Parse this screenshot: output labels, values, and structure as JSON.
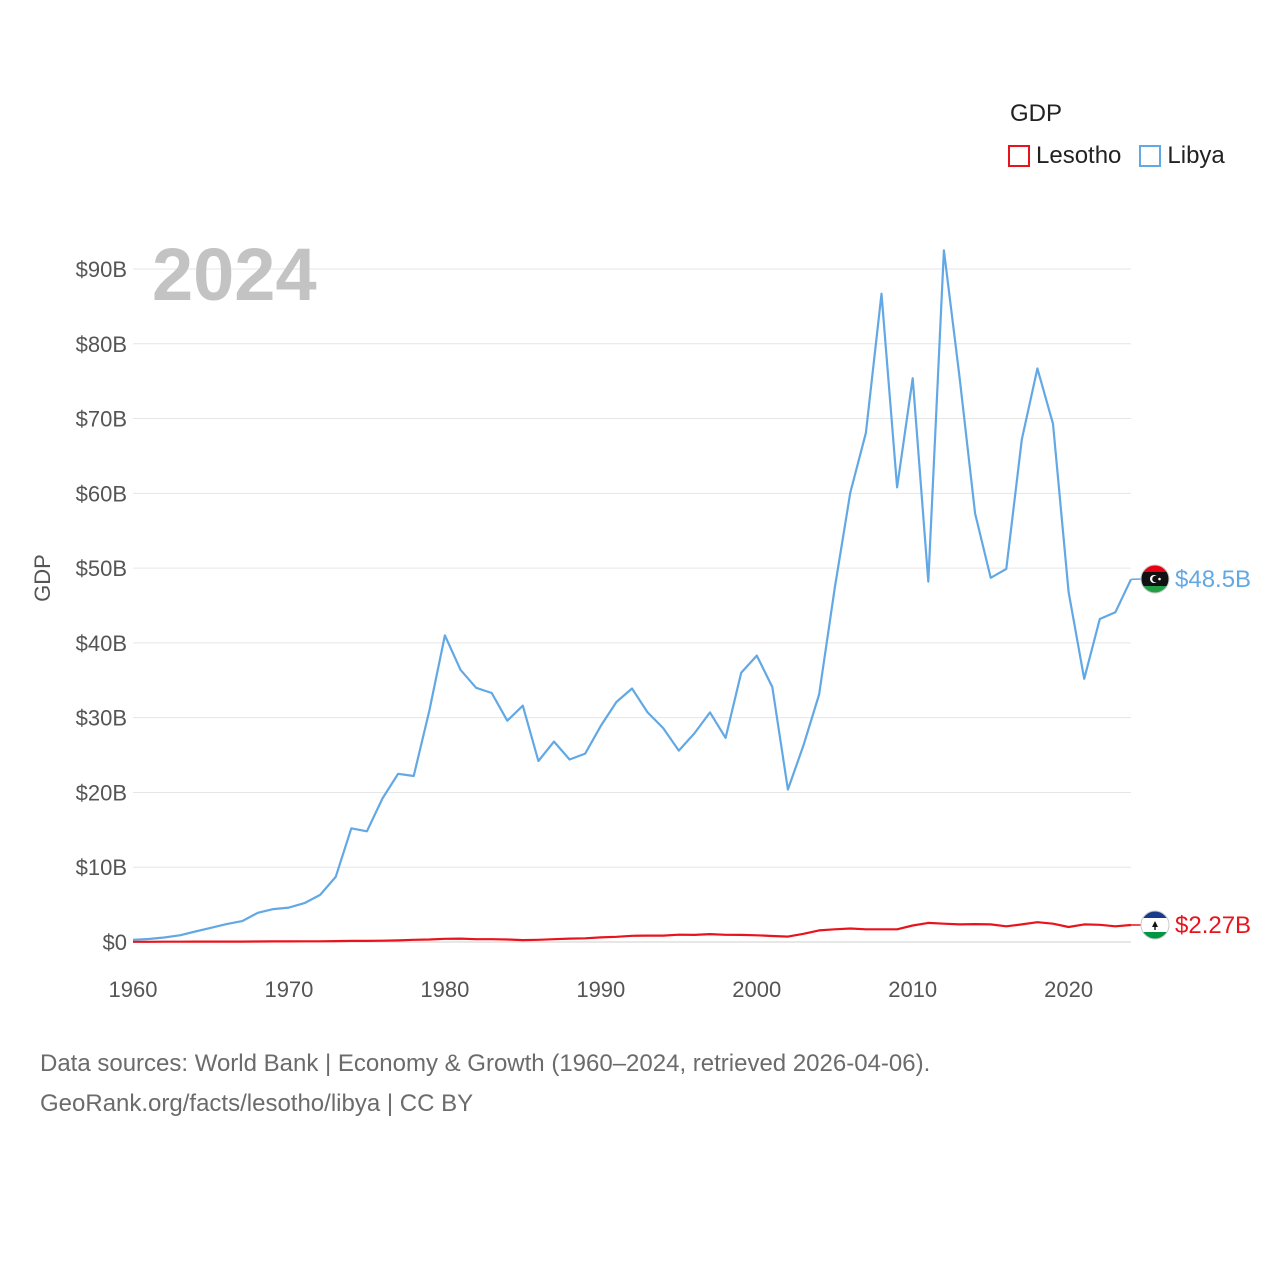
{
  "legend": {
    "title": "GDP",
    "items": [
      {
        "label": "Lesotho",
        "color": "#e8141c"
      },
      {
        "label": "Libya",
        "color": "#62a8e5"
      }
    ]
  },
  "source": {
    "line1": "Data sources: World Bank | Economy & Growth (1960–2024, retrieved 2026-04-06).",
    "line2": "GeoRank.org/facts/lesotho/libya | CC BY"
  },
  "chart_data": {
    "type": "line",
    "title": "GDP",
    "year_label": "2024",
    "xlabel": "",
    "ylabel": "GDP",
    "xlim": [
      1960,
      2024
    ],
    "ylim": [
      0,
      90
    ],
    "y_unit": "billion USD",
    "xticks": [
      1960,
      1970,
      1980,
      1990,
      2000,
      2010,
      2020
    ],
    "yticks": [
      0,
      10,
      20,
      30,
      40,
      50,
      60,
      70,
      80,
      90
    ],
    "ytick_labels": [
      "$0",
      "$10B",
      "$20B",
      "$30B",
      "$40B",
      "$50B",
      "$60B",
      "$70B",
      "$80B",
      "$90B"
    ],
    "grid": true,
    "legend_position": "top-right",
    "x": [
      1960,
      1961,
      1962,
      1963,
      1964,
      1965,
      1966,
      1967,
      1968,
      1969,
      1970,
      1971,
      1972,
      1973,
      1974,
      1975,
      1976,
      1977,
      1978,
      1979,
      1980,
      1981,
      1982,
      1983,
      1984,
      1985,
      1986,
      1987,
      1988,
      1989,
      1990,
      1991,
      1992,
      1993,
      1994,
      1995,
      1996,
      1997,
      1998,
      1999,
      2000,
      2001,
      2002,
      2003,
      2004,
      2005,
      2006,
      2007,
      2008,
      2009,
      2010,
      2011,
      2012,
      2013,
      2014,
      2015,
      2016,
      2017,
      2018,
      2019,
      2020,
      2021,
      2022,
      2023,
      2024
    ],
    "series": [
      {
        "name": "Libya",
        "color": "#62a8e5",
        "end_label": "$48.5B",
        "values": [
          0.3,
          0.4,
          0.6,
          0.9,
          1.4,
          1.9,
          2.4,
          2.8,
          3.9,
          4.4,
          4.6,
          5.2,
          6.3,
          8.7,
          15.2,
          14.8,
          19.2,
          22.5,
          22.2,
          30.9,
          41.0,
          36.4,
          34.0,
          33.3,
          29.6,
          31.6,
          24.2,
          26.8,
          24.4,
          25.2,
          28.9,
          32.1,
          33.9,
          30.7,
          28.6,
          25.6,
          27.9,
          30.7,
          27.3,
          36.0,
          38.3,
          34.1,
          20.4,
          26.3,
          33.1,
          47.3,
          60.1,
          68.1,
          86.7,
          60.8,
          75.4,
          48.2,
          92.5,
          75.6,
          57.3,
          48.7,
          49.9,
          67.2,
          76.7,
          69.3,
          46.8,
          35.2,
          43.2,
          44.1,
          48.5
        ]
      },
      {
        "name": "Lesotho",
        "color": "#e8141c",
        "end_label": "$2.27B",
        "values": [
          0.03,
          0.03,
          0.04,
          0.04,
          0.05,
          0.05,
          0.06,
          0.06,
          0.07,
          0.08,
          0.08,
          0.09,
          0.1,
          0.12,
          0.15,
          0.15,
          0.18,
          0.22,
          0.3,
          0.33,
          0.43,
          0.45,
          0.38,
          0.37,
          0.34,
          0.25,
          0.3,
          0.37,
          0.45,
          0.49,
          0.62,
          0.7,
          0.83,
          0.85,
          0.85,
          0.97,
          0.95,
          1.06,
          0.96,
          0.95,
          0.89,
          0.8,
          0.72,
          1.1,
          1.55,
          1.7,
          1.8,
          1.7,
          1.7,
          1.7,
          2.2,
          2.55,
          2.45,
          2.35,
          2.4,
          2.35,
          2.1,
          2.35,
          2.65,
          2.45,
          2.0,
          2.35,
          2.3,
          2.1,
          2.27
        ]
      }
    ]
  }
}
